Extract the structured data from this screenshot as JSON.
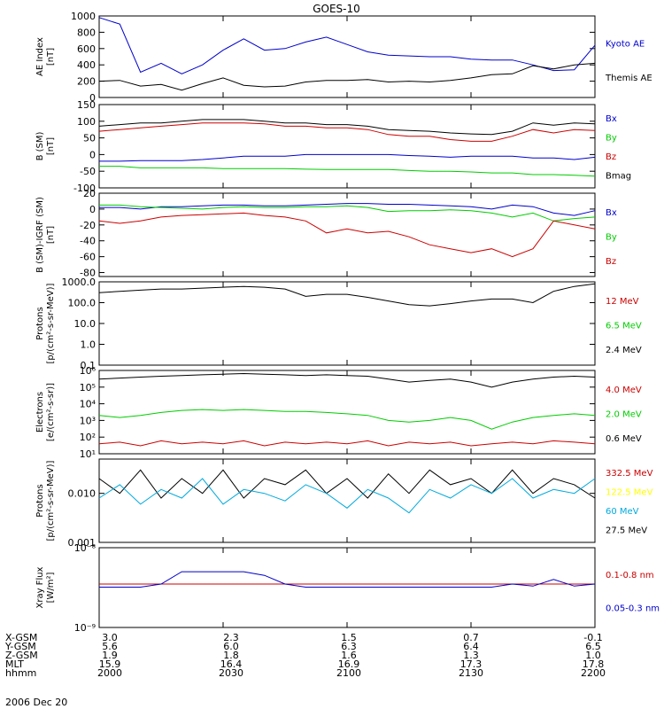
{
  "title": "GOES-10",
  "date_label": "2006 Dec 20",
  "ephemeris": {
    "labels": [
      "X-GSM",
      "Y-GSM",
      "Z-GSM",
      "MLT",
      "hhmm"
    ],
    "columns": [
      [
        "3.0",
        "5.6",
        "1.9",
        "15.9",
        "2000"
      ],
      [
        "2.3",
        "6.0",
        "1.8",
        "16.4",
        "2030"
      ],
      [
        "1.5",
        "6.3",
        "1.6",
        "16.9",
        "2100"
      ],
      [
        "0.7",
        "6.4",
        "1.3",
        "17.3",
        "2130"
      ],
      [
        "-0.1",
        "6.5",
        "1.0",
        "17.8",
        "2200"
      ]
    ]
  },
  "panels": [
    {
      "ylabel": [
        "AE Index",
        "[nT]"
      ],
      "ticks": [
        "0",
        "200",
        "400",
        "600",
        "800",
        "1000"
      ],
      "tick_values": [
        0,
        200,
        400,
        600,
        800,
        1000
      ],
      "legend": [
        {
          "text": "Kyoto AE",
          "color": "#0000cc"
        },
        {
          "text": "Themis AE",
          "color": "#000000"
        }
      ]
    },
    {
      "ylabel": [
        "B (SM)",
        "[nT]"
      ],
      "ticks": [
        "-100",
        "-50",
        "0",
        "50",
        "100",
        "150"
      ],
      "tick_values": [
        -100,
        -50,
        0,
        50,
        100,
        150
      ],
      "legend": [
        {
          "text": "Bx",
          "color": "#0000cc"
        },
        {
          "text": "By",
          "color": "#00cc00"
        },
        {
          "text": "Bz",
          "color": "#cc0000"
        },
        {
          "text": "Bmag",
          "color": "#000000"
        }
      ]
    },
    {
      "ylabel": [
        "B (SM)-IGRF (SM)",
        "[nT]"
      ],
      "ticks": [
        "-80",
        "-60",
        "-40",
        "-20",
        "0",
        "20"
      ],
      "tick_values": [
        -80,
        -60,
        -40,
        -20,
        0,
        20
      ],
      "legend": [
        {
          "text": "Bx",
          "color": "#0000cc"
        },
        {
          "text": "By",
          "color": "#00cc00"
        },
        {
          "text": "Bz",
          "color": "#cc0000"
        }
      ]
    },
    {
      "ylabel": [
        "Protons",
        "[p/(cm²-s-sr-MeV)]"
      ],
      "ticks": [
        "0.1",
        "1.0",
        "10.0",
        "100.0",
        "1000.0"
      ],
      "tick_values": [
        0.1,
        1,
        10,
        100,
        1000
      ],
      "legend": [
        {
          "text": "12 MeV",
          "color": "#cc0000"
        },
        {
          "text": "6.5 MeV",
          "color": "#00cc00"
        },
        {
          "text": "2.4 MeV",
          "color": "#000000"
        }
      ]
    },
    {
      "ylabel": [
        "Electrons",
        "[e/(cm²-s-sr)]"
      ],
      "ticks": [
        "10¹",
        "10²",
        "10³",
        "10⁴",
        "10⁵",
        "10⁶"
      ],
      "tick_values": [
        10,
        100,
        1000,
        10000,
        100000,
        1000000
      ],
      "legend": [
        {
          "text": "4.0 MeV",
          "color": "#cc0000"
        },
        {
          "text": "2.0 MeV",
          "color": "#00cc00"
        },
        {
          "text": "0.6 MeV",
          "color": "#000000"
        }
      ]
    },
    {
      "ylabel": [
        "Protons",
        "[p/(cm²-s-sr-MeV)]"
      ],
      "ticks": [
        "0.001",
        "0.010"
      ],
      "tick_values": [
        0.001,
        0.01
      ],
      "legend": [
        {
          "text": "332.5 MeV",
          "color": "#cc0000"
        },
        {
          "text": "122.5 MeV",
          "color": "#ffff00"
        },
        {
          "text": "60 MeV",
          "color": "#00aadd"
        },
        {
          "text": "27.5 MeV",
          "color": "#000000"
        }
      ]
    },
    {
      "ylabel": [
        "Xray Flux",
        "[W/m²]"
      ],
      "ticks": [
        "10⁻⁹",
        "10⁻⁸"
      ],
      "tick_values": [
        1e-09,
        1e-08
      ],
      "legend": [
        {
          "text": "0.1-0.8 nm",
          "color": "#cc0000"
        },
        {
          "text": "0.05-0.3 nm",
          "color": "#0000cc"
        }
      ]
    }
  ],
  "chart_data": [
    {
      "type": "line",
      "x": [
        0,
        5,
        10,
        15,
        20,
        25,
        30,
        35,
        40,
        45,
        50,
        55,
        60,
        65,
        70,
        75,
        80,
        85,
        90,
        95,
        100,
        105,
        110,
        115,
        120
      ],
      "ylim": [
        0,
        1000
      ],
      "series": [
        {
          "name": "Kyoto AE",
          "color": "#0000cc",
          "values": [
            980,
            900,
            310,
            420,
            290,
            400,
            580,
            720,
            580,
            600,
            680,
            740,
            650,
            560,
            520,
            510,
            500,
            500,
            470,
            460,
            460,
            400,
            330,
            340,
            640
          ]
        },
        {
          "name": "Themis AE",
          "color": "#000000",
          "values": [
            200,
            210,
            140,
            160,
            90,
            170,
            240,
            150,
            130,
            140,
            190,
            210,
            210,
            220,
            190,
            200,
            190,
            210,
            240,
            280,
            290,
            390,
            350,
            400,
            420
          ]
        }
      ]
    },
    {
      "type": "line",
      "x": [
        0,
        5,
        10,
        15,
        20,
        25,
        30,
        35,
        40,
        45,
        50,
        55,
        60,
        65,
        70,
        75,
        80,
        85,
        90,
        95,
        100,
        105,
        110,
        115,
        120
      ],
      "ylim": [
        -100,
        150
      ],
      "series": [
        {
          "name": "Bmag",
          "color": "#000000",
          "values": [
            85,
            90,
            95,
            95,
            100,
            105,
            105,
            105,
            100,
            95,
            95,
            90,
            90,
            85,
            75,
            72,
            70,
            65,
            62,
            60,
            70,
            95,
            88,
            95,
            92
          ]
        },
        {
          "name": "Bz",
          "color": "#cc0000",
          "values": [
            70,
            75,
            80,
            85,
            90,
            95,
            95,
            95,
            92,
            85,
            85,
            80,
            80,
            75,
            60,
            55,
            55,
            45,
            40,
            40,
            55,
            75,
            65,
            75,
            72
          ]
        },
        {
          "name": "Bx",
          "color": "#0000cc",
          "values": [
            -20,
            -20,
            -18,
            -18,
            -18,
            -15,
            -10,
            -5,
            -5,
            -5,
            0,
            0,
            0,
            0,
            0,
            -3,
            -5,
            -8,
            -5,
            -5,
            -5,
            -10,
            -10,
            -15,
            -8
          ]
        },
        {
          "name": "By",
          "color": "#00cc00",
          "values": [
            -35,
            -35,
            -40,
            -40,
            -40,
            -40,
            -42,
            -42,
            -42,
            -42,
            -44,
            -45,
            -45,
            -45,
            -45,
            -48,
            -50,
            -50,
            -52,
            -55,
            -55,
            -60,
            -60,
            -62,
            -65
          ]
        }
      ]
    },
    {
      "type": "line",
      "x": [
        0,
        5,
        10,
        15,
        20,
        25,
        30,
        35,
        40,
        45,
        50,
        55,
        60,
        65,
        70,
        75,
        80,
        85,
        90,
        95,
        100,
        105,
        110,
        115,
        120
      ],
      "ylim": [
        -85,
        20
      ],
      "series": [
        {
          "name": "Bx",
          "color": "#0000cc",
          "values": [
            2,
            2,
            0,
            3,
            3,
            4,
            5,
            5,
            4,
            4,
            5,
            6,
            7,
            7,
            6,
            6,
            5,
            4,
            3,
            0,
            5,
            3,
            -5,
            -8,
            -2
          ]
        },
        {
          "name": "By",
          "color": "#00cc00",
          "values": [
            5,
            5,
            3,
            2,
            1,
            0,
            2,
            3,
            2,
            2,
            3,
            3,
            4,
            2,
            -3,
            -2,
            -2,
            -1,
            -2,
            -5,
            -10,
            -5,
            -15,
            -12,
            -10
          ]
        },
        {
          "name": "Bz",
          "color": "#cc0000",
          "values": [
            -15,
            -18,
            -15,
            -10,
            -8,
            -7,
            -6,
            -5,
            -8,
            -10,
            -15,
            -30,
            -25,
            -30,
            -28,
            -35,
            -45,
            -50,
            -55,
            -50,
            -60,
            -50,
            -15,
            -20,
            -25
          ]
        }
      ]
    },
    {
      "type": "line",
      "x": [
        0,
        5,
        10,
        15,
        20,
        25,
        30,
        35,
        40,
        45,
        50,
        55,
        60,
        65,
        70,
        75,
        80,
        85,
        90,
        95,
        100,
        105,
        110,
        115,
        120
      ],
      "ylim": [
        0.1,
        1000
      ],
      "series": [
        {
          "name": "2.4 MeV",
          "color": "#000000",
          "values": [
            300,
            350,
            400,
            450,
            450,
            500,
            550,
            600,
            550,
            450,
            200,
            250,
            250,
            180,
            120,
            80,
            70,
            90,
            120,
            150,
            150,
            100,
            350,
            600,
            800
          ]
        },
        {
          "name": "6.5 MeV",
          "color": "#00cc00",
          "values": [
            null,
            null,
            0.12,
            null,
            null,
            null,
            null,
            0.11,
            null,
            null,
            null,
            null,
            null,
            null,
            0.13,
            null,
            null,
            null,
            0.11,
            null,
            null,
            0.12,
            null,
            0.11,
            null
          ]
        },
        {
          "name": "12 MeV",
          "color": "#cc0000",
          "values": [
            null,
            null,
            null,
            null,
            0.12,
            null,
            null,
            null,
            null,
            null,
            null,
            null,
            null,
            0.15,
            null,
            null,
            null,
            null,
            null,
            null,
            0.13,
            null,
            null,
            null,
            null
          ]
        }
      ]
    },
    {
      "type": "line",
      "x": [
        0,
        5,
        10,
        15,
        20,
        25,
        30,
        35,
        40,
        45,
        50,
        55,
        60,
        65,
        70,
        75,
        80,
        85,
        90,
        95,
        100,
        105,
        110,
        115,
        120
      ],
      "ylim": [
        10,
        1000000
      ],
      "series": [
        {
          "name": "0.6 MeV",
          "color": "#000000",
          "values": [
            300000,
            350000,
            400000,
            450000,
            500000,
            550000,
            600000,
            650000,
            600000,
            550000,
            500000,
            550000,
            500000,
            450000,
            300000,
            200000,
            250000,
            300000,
            200000,
            100000,
            200000,
            300000,
            400000,
            450000,
            400000
          ]
        },
        {
          "name": "2.0 MeV",
          "color": "#00cc00",
          "values": [
            2000,
            1500,
            2000,
            3000,
            4000,
            4500,
            4000,
            4500,
            4000,
            3500,
            3500,
            3000,
            2500,
            2000,
            1000,
            800,
            1000,
            1500,
            1000,
            300,
            800,
            1500,
            2000,
            2500,
            2000
          ]
        },
        {
          "name": "4.0 MeV",
          "color": "#cc0000",
          "values": [
            40,
            50,
            30,
            60,
            40,
            50,
            40,
            60,
            30,
            50,
            40,
            50,
            40,
            60,
            30,
            50,
            40,
            50,
            30,
            40,
            50,
            40,
            60,
            50,
            40
          ]
        }
      ]
    },
    {
      "type": "line",
      "x": [
        0,
        5,
        10,
        15,
        20,
        25,
        30,
        35,
        40,
        45,
        50,
        55,
        60,
        65,
        70,
        75,
        80,
        85,
        90,
        95,
        100,
        105,
        110,
        115,
        120
      ],
      "ylim": [
        0.001,
        0.05
      ],
      "series": [
        {
          "name": "27.5 MeV",
          "color": "#000000",
          "values": [
            0.02,
            0.01,
            0.03,
            0.008,
            0.02,
            0.01,
            0.03,
            0.008,
            0.02,
            0.015,
            0.03,
            0.01,
            0.02,
            0.008,
            0.025,
            0.01,
            0.03,
            0.015,
            0.02,
            0.01,
            0.03,
            0.01,
            0.02,
            0.015,
            0.008
          ]
        },
        {
          "name": "60 MeV",
          "color": "#00aadd",
          "values": [
            0.008,
            0.015,
            0.006,
            0.012,
            0.008,
            0.02,
            0.006,
            0.012,
            0.01,
            0.007,
            0.015,
            0.01,
            0.005,
            0.012,
            0.008,
            0.004,
            0.012,
            0.008,
            0.015,
            0.01,
            0.02,
            0.008,
            0.012,
            0.01,
            0.02
          ]
        }
      ]
    },
    {
      "type": "line",
      "x": [
        0,
        5,
        10,
        15,
        20,
        25,
        30,
        35,
        40,
        45,
        50,
        55,
        60,
        65,
        70,
        75,
        80,
        85,
        90,
        95,
        100,
        105,
        110,
        115,
        120
      ],
      "ylim": [
        1e-09,
        1e-08
      ],
      "series": [
        {
          "name": "0.1-0.8 nm",
          "color": "#cc0000",
          "values": [
            3.5e-09,
            3.5e-09,
            3.5e-09,
            3.5e-09,
            3.5e-09,
            3.5e-09,
            3.5e-09,
            3.5e-09,
            3.5e-09,
            3.5e-09,
            3.5e-09,
            3.5e-09,
            3.5e-09,
            3.5e-09,
            3.5e-09,
            3.5e-09,
            3.5e-09,
            3.5e-09,
            3.5e-09,
            3.5e-09,
            3.5e-09,
            3.5e-09,
            3.5e-09,
            3.5e-09,
            3.5e-09
          ]
        },
        {
          "name": "0.05-0.3 nm",
          "color": "#0000cc",
          "values": [
            3.2e-09,
            3.2e-09,
            3.2e-09,
            3.5e-09,
            5e-09,
            5e-09,
            5e-09,
            5e-09,
            4.5e-09,
            3.5e-09,
            3.2e-09,
            3.2e-09,
            3.2e-09,
            3.2e-09,
            3.2e-09,
            3.2e-09,
            3.2e-09,
            3.2e-09,
            3.2e-09,
            3.2e-09,
            3.5e-09,
            3.3e-09,
            4e-09,
            3.3e-09,
            3.5e-09
          ]
        }
      ]
    }
  ]
}
